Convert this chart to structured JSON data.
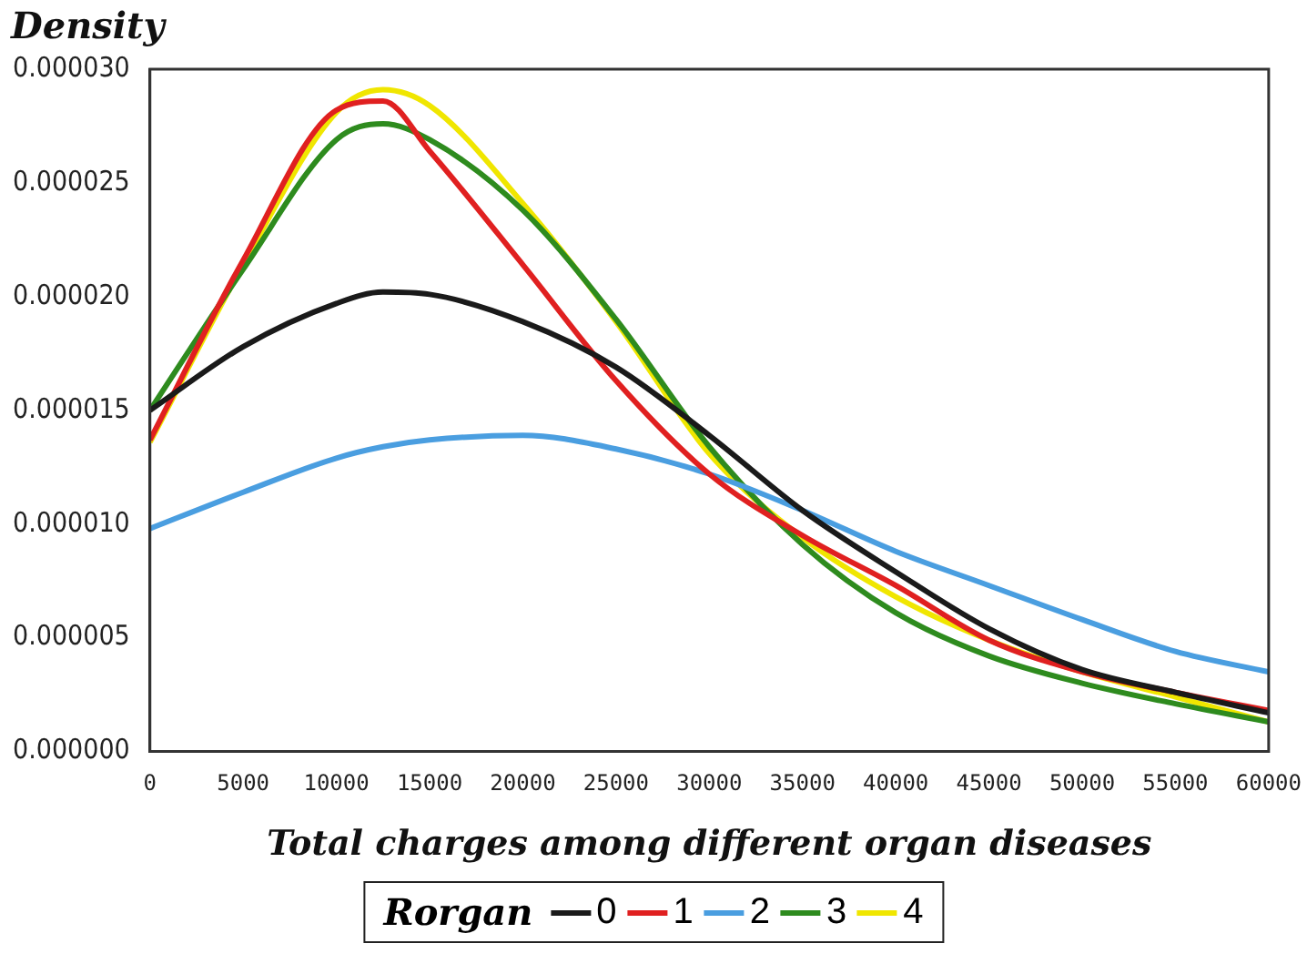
{
  "chart_data": {
    "type": "line",
    "ylabel": "Density",
    "xlabel": "Total charges among different organ diseases",
    "legend_title": "Rorgan",
    "legend": "bottom",
    "grid": false,
    "marker": "none",
    "line_style": "solid",
    "x": [
      0,
      5000,
      10000,
      12500,
      15000,
      20000,
      25000,
      30000,
      35000,
      40000,
      45000,
      50000,
      55000,
      60000
    ],
    "series": [
      {
        "name": "0",
        "color": "#1a1a1a",
        "values": [
          1.5e-05,
          1.78e-05,
          1.97e-05,
          2.02e-05,
          2.01e-05,
          1.89e-05,
          1.69e-05,
          1.39e-05,
          1.06e-05,
          7.9e-06,
          5.4e-06,
          3.6e-06,
          2.6e-06,
          1.7e-06
        ]
      },
      {
        "name": "1",
        "color": "#e02020",
        "values": [
          1.37e-05,
          2.16e-05,
          2.82e-05,
          2.86e-05,
          2.64e-05,
          2.14e-05,
          1.63e-05,
          1.22e-05,
          9.5e-06,
          7.3e-06,
          4.9e-06,
          3.5e-06,
          2.6e-06,
          1.8e-06
        ]
      },
      {
        "name": "2",
        "color": "#4a9ee0",
        "values": [
          9.8e-06,
          1.14e-05,
          1.29e-05,
          1.34e-05,
          1.37e-05,
          1.39e-05,
          1.33e-05,
          1.22e-05,
          1.06e-05,
          8.8e-06,
          7.3e-06,
          5.8e-06,
          4.4e-06,
          3.5e-06
        ]
      },
      {
        "name": "3",
        "color": "#2e8b1e",
        "values": [
          1.5e-05,
          2.12e-05,
          2.69e-05,
          2.76e-05,
          2.69e-05,
          2.38e-05,
          1.9e-05,
          1.34e-05,
          9.1e-06,
          6.1e-06,
          4.2e-06,
          3e-06,
          2.1e-06,
          1.3e-06
        ]
      },
      {
        "name": "4",
        "color": "#f0e600",
        "values": [
          1.36e-05,
          2.14e-05,
          2.81e-05,
          2.91e-05,
          2.84e-05,
          2.41e-05,
          1.89e-05,
          1.31e-05,
          9.4e-06,
          6.8e-06,
          4.9e-06,
          3.5e-06,
          2.4e-06,
          1.3e-06
        ]
      }
    ],
    "xlim": [
      0,
      60000
    ],
    "xticks": [
      0,
      5000,
      10000,
      15000,
      20000,
      25000,
      30000,
      35000,
      40000,
      45000,
      50000,
      55000,
      60000
    ],
    "ylim": [
      0,
      3e-05
    ],
    "yticks": [
      {
        "value": 0,
        "label": "0.000000"
      },
      {
        "value": 5e-06,
        "label": "0.000005"
      },
      {
        "value": 1e-05,
        "label": "0.000010"
      },
      {
        "value": 1.5e-05,
        "label": "0.000015"
      },
      {
        "value": 2e-05,
        "label": "0.000020"
      },
      {
        "value": 2.5e-05,
        "label": "0.000025"
      },
      {
        "value": 3e-05,
        "label": "0.000030"
      }
    ]
  }
}
